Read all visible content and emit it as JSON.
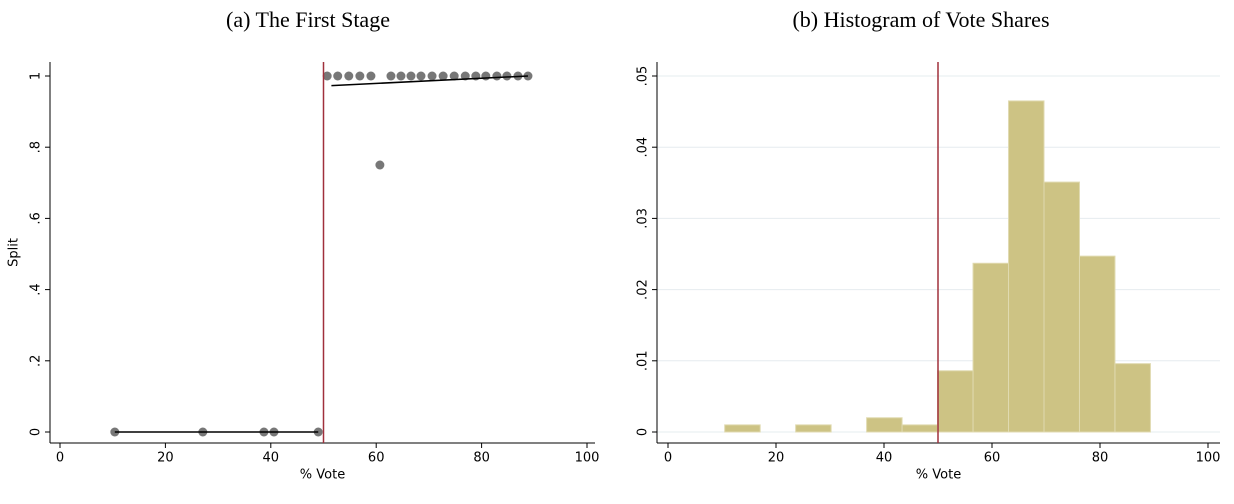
{
  "chart_data": [
    {
      "type": "scatter",
      "title": "(a) The First Stage",
      "x_label": "% Vote",
      "y_label": "Split",
      "x": [
        10.4,
        27.1,
        38.7,
        40.6,
        49.0,
        50.7,
        52.7,
        54.8,
        56.9,
        59.0,
        60.7,
        62.8,
        64.7,
        66.6,
        68.5,
        70.6,
        72.7,
        74.8,
        76.9,
        78.9,
        80.8,
        82.9,
        84.8,
        86.9,
        88.8
      ],
      "values": [
        0,
        0,
        0,
        0,
        0,
        1,
        1,
        1,
        1,
        1,
        0.75,
        1,
        1,
        1,
        1,
        1,
        1,
        1,
        1,
        1,
        1,
        1,
        1,
        1,
        1
      ],
      "color": "#777777",
      "fit_lines": [
        {
          "x": [
            10.4,
            49.0
          ],
          "y": [
            0,
            0
          ]
        },
        {
          "x": [
            51.5,
            88.8
          ],
          "y": [
            0.973,
            1.0
          ]
        }
      ],
      "fit_color": "#000000",
      "vline": 50,
      "vline_color": "#a0303c",
      "xlim": [
        0,
        100
      ],
      "xticks": [
        0,
        20,
        40,
        60,
        80,
        100
      ],
      "ylim": [
        0,
        1
      ],
      "yticks": [
        0,
        {
          "value": 0.2,
          "label": ".2"
        },
        {
          "value": 0.4,
          "label": ".4"
        },
        {
          "value": 0.6,
          "label": ".6"
        },
        {
          "value": 0.8,
          "label": ".8"
        },
        1
      ],
      "grid": false
    },
    {
      "type": "histogram",
      "title": "(b) Histogram of Vote Shares",
      "x_label": "% Vote",
      "bins": [
        10.5,
        17.07,
        23.64,
        30.21,
        36.78,
        43.35,
        49.92,
        56.49,
        63.06,
        69.63,
        76.2,
        82.77,
        89.34
      ],
      "values": [
        0.001,
        0,
        0.001,
        0,
        0.002,
        0.001,
        0.0086,
        0.0237,
        0.0465,
        0.0351,
        0.0247,
        0.0096
      ],
      "color": "#cdc384",
      "vline": 50,
      "vline_color": "#a0303c",
      "xlim": [
        0,
        100
      ],
      "xticks": [
        0,
        20,
        40,
        60,
        80,
        100
      ],
      "ylim": [
        0,
        0.05
      ],
      "yticks": [
        0,
        {
          "value": 0.01,
          "label": ".01"
        },
        {
          "value": 0.02,
          "label": ".02"
        },
        {
          "value": 0.03,
          "label": ".03"
        },
        {
          "value": 0.04,
          "label": ".04"
        },
        {
          "value": 0.05,
          "label": ".05"
        }
      ],
      "grid": true
    }
  ]
}
